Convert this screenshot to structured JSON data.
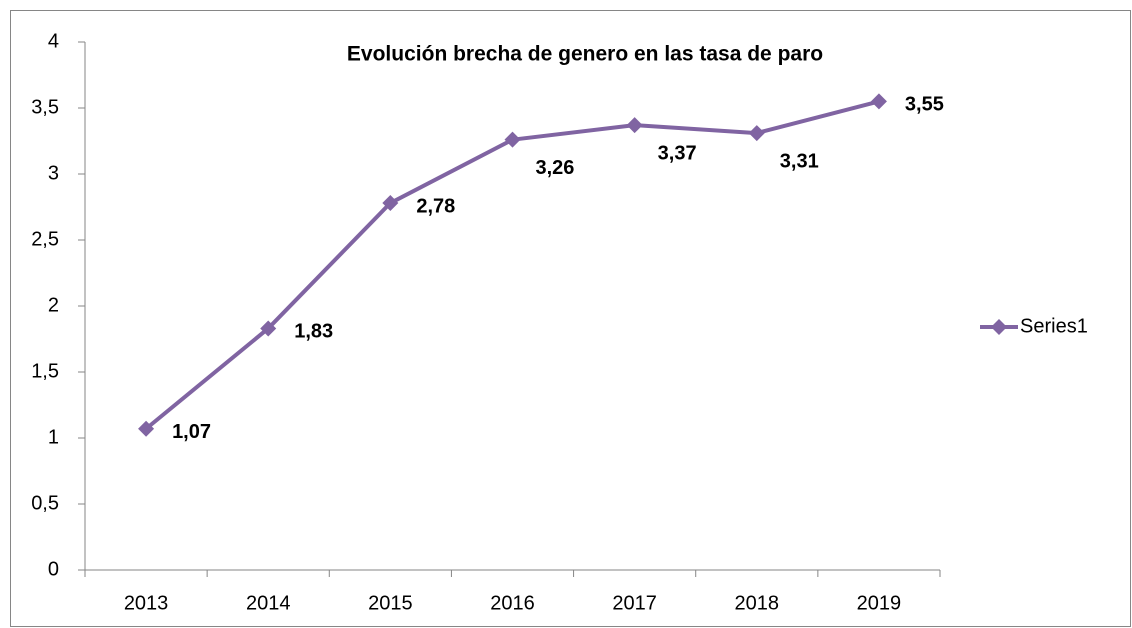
{
  "chart_data": {
    "type": "line",
    "title": "Evolución brecha de genero en  las tasa de paro",
    "categories": [
      "2013",
      "2014",
      "2015",
      "2016",
      "2017",
      "2018",
      "2019"
    ],
    "series": [
      {
        "name": "Series1",
        "color": "#8064a2",
        "values": [
          1.07,
          1.83,
          2.78,
          3.26,
          3.37,
          3.31,
          3.55
        ],
        "value_labels": [
          "1,07",
          "1,83",
          "2,78",
          "3,26",
          "3,37",
          "3,31",
          "3,55"
        ]
      }
    ],
    "ylim": [
      0,
      4
    ],
    "yticks": [
      0,
      {
        "value": 0.5,
        "label": "0,5"
      },
      1,
      {
        "value": 1.5,
        "label": "1,5"
      },
      2,
      {
        "value": 2.5,
        "label": "2,5"
      },
      3,
      {
        "value": 3.5,
        "label": "3,5"
      },
      4
    ],
    "grid": false,
    "legend": "right"
  }
}
